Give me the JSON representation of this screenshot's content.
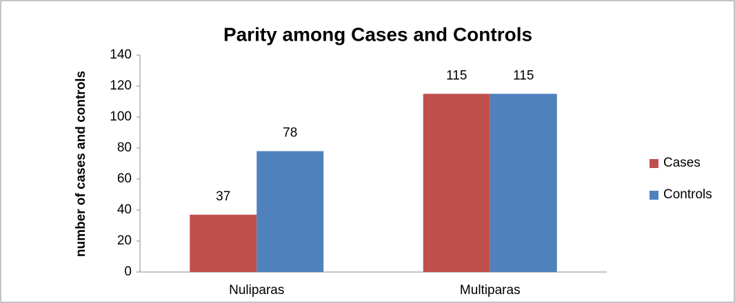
{
  "chart_data": {
    "type": "bar",
    "title": "Parity among Cases and Controls",
    "y_label": "number of cases and controls",
    "categories": [
      "Nuliparas",
      "Multiparas"
    ],
    "series": [
      {
        "name": "Cases",
        "color": "#c0504d",
        "values": [
          37,
          115
        ]
      },
      {
        "name": "Controls",
        "color": "#4f81bd",
        "values": [
          78,
          115
        ]
      }
    ],
    "ylim": [
      0,
      140
    ],
    "yticks": [
      0,
      20,
      40,
      60,
      80,
      100,
      120,
      140
    ],
    "legend": "right",
    "grid": false
  }
}
